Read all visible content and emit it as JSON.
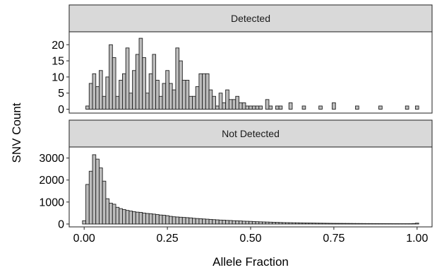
{
  "chart_data": {
    "type": "bar",
    "subtype": "faceted-histogram",
    "xlabel": "Allele Fraction",
    "ylabel": "SNV Count",
    "xlim": [
      -0.045,
      1.045
    ],
    "x_ticks": [
      0.0,
      0.25,
      0.5,
      0.75,
      1.0
    ],
    "x_tick_labels": [
      "0.00",
      "0.25",
      "0.50",
      "0.75",
      "1.00"
    ],
    "bin_width": 0.01,
    "bar_color": "#bdbdbd",
    "bar_edge_color": "#1f1f1f",
    "strip_color": "#d9d9d9",
    "grid": false,
    "panels": [
      {
        "title": "Detected",
        "ylim": [
          -1.2,
          24
        ],
        "y_ticks": [
          0,
          5,
          10,
          15,
          20
        ],
        "y_tick_labels": [
          "0",
          "5",
          "10",
          "15",
          "20"
        ],
        "bins": [
          {
            "x": 0.01,
            "y": 1
          },
          {
            "x": 0.02,
            "y": 8
          },
          {
            "x": 0.03,
            "y": 11
          },
          {
            "x": 0.04,
            "y": 7
          },
          {
            "x": 0.05,
            "y": 12
          },
          {
            "x": 0.06,
            "y": 4
          },
          {
            "x": 0.07,
            "y": 10
          },
          {
            "x": 0.08,
            "y": 20
          },
          {
            "x": 0.09,
            "y": 16
          },
          {
            "x": 0.1,
            "y": 4
          },
          {
            "x": 0.11,
            "y": 9
          },
          {
            "x": 0.12,
            "y": 11
          },
          {
            "x": 0.13,
            "y": 19
          },
          {
            "x": 0.14,
            "y": 5
          },
          {
            "x": 0.15,
            "y": 12
          },
          {
            "x": 0.16,
            "y": 17
          },
          {
            "x": 0.17,
            "y": 22
          },
          {
            "x": 0.18,
            "y": 16
          },
          {
            "x": 0.19,
            "y": 5
          },
          {
            "x": 0.2,
            "y": 11
          },
          {
            "x": 0.21,
            "y": 17
          },
          {
            "x": 0.22,
            "y": 9
          },
          {
            "x": 0.23,
            "y": 4
          },
          {
            "x": 0.24,
            "y": 8
          },
          {
            "x": 0.25,
            "y": 12
          },
          {
            "x": 0.26,
            "y": 8
          },
          {
            "x": 0.27,
            "y": 6
          },
          {
            "x": 0.28,
            "y": 19
          },
          {
            "x": 0.29,
            "y": 15
          },
          {
            "x": 0.3,
            "y": 9
          },
          {
            "x": 0.31,
            "y": 9
          },
          {
            "x": 0.32,
            "y": 4
          },
          {
            "x": 0.33,
            "y": 4
          },
          {
            "x": 0.34,
            "y": 7
          },
          {
            "x": 0.35,
            "y": 11
          },
          {
            "x": 0.36,
            "y": 11
          },
          {
            "x": 0.37,
            "y": 11
          },
          {
            "x": 0.38,
            "y": 6
          },
          {
            "x": 0.39,
            "y": 4
          },
          {
            "x": 0.4,
            "y": 1
          },
          {
            "x": 0.41,
            "y": 5
          },
          {
            "x": 0.42,
            "y": 2
          },
          {
            "x": 0.43,
            "y": 6
          },
          {
            "x": 0.44,
            "y": 3
          },
          {
            "x": 0.45,
            "y": 3
          },
          {
            "x": 0.46,
            "y": 4
          },
          {
            "x": 0.47,
            "y": 2
          },
          {
            "x": 0.48,
            "y": 2
          },
          {
            "x": 0.49,
            "y": 1
          },
          {
            "x": 0.5,
            "y": 1
          },
          {
            "x": 0.51,
            "y": 1
          },
          {
            "x": 0.52,
            "y": 1
          },
          {
            "x": 0.53,
            "y": 1
          },
          {
            "x": 0.55,
            "y": 3
          },
          {
            "x": 0.56,
            "y": 1
          },
          {
            "x": 0.58,
            "y": 1
          },
          {
            "x": 0.59,
            "y": 1
          },
          {
            "x": 0.62,
            "y": 2
          },
          {
            "x": 0.66,
            "y": 1
          },
          {
            "x": 0.71,
            "y": 1
          },
          {
            "x": 0.75,
            "y": 2
          },
          {
            "x": 0.82,
            "y": 1
          },
          {
            "x": 0.89,
            "y": 1
          },
          {
            "x": 0.97,
            "y": 1
          },
          {
            "x": 1.0,
            "y": 1
          }
        ]
      },
      {
        "title": "Not Detected",
        "ylim": [
          -130,
          3500
        ],
        "y_ticks": [
          0,
          1000,
          2000,
          3000
        ],
        "y_tick_labels": [
          "0",
          "1000",
          "2000",
          "3000"
        ],
        "bins": [
          {
            "x": 0.0,
            "y": 150
          },
          {
            "x": 0.01,
            "y": 1800
          },
          {
            "x": 0.02,
            "y": 2400
          },
          {
            "x": 0.03,
            "y": 3150
          },
          {
            "x": 0.04,
            "y": 2950
          },
          {
            "x": 0.05,
            "y": 2550
          },
          {
            "x": 0.06,
            "y": 1950
          },
          {
            "x": 0.07,
            "y": 1150
          },
          {
            "x": 0.08,
            "y": 950
          },
          {
            "x": 0.09,
            "y": 900
          },
          {
            "x": 0.1,
            "y": 760
          },
          {
            "x": 0.11,
            "y": 700
          },
          {
            "x": 0.12,
            "y": 660
          },
          {
            "x": 0.13,
            "y": 620
          },
          {
            "x": 0.14,
            "y": 590
          },
          {
            "x": 0.15,
            "y": 560
          },
          {
            "x": 0.16,
            "y": 540
          },
          {
            "x": 0.17,
            "y": 530
          },
          {
            "x": 0.18,
            "y": 500
          },
          {
            "x": 0.19,
            "y": 480
          },
          {
            "x": 0.2,
            "y": 470
          },
          {
            "x": 0.21,
            "y": 450
          },
          {
            "x": 0.22,
            "y": 430
          },
          {
            "x": 0.23,
            "y": 410
          },
          {
            "x": 0.24,
            "y": 400
          },
          {
            "x": 0.25,
            "y": 380
          },
          {
            "x": 0.26,
            "y": 350
          },
          {
            "x": 0.27,
            "y": 330
          },
          {
            "x": 0.28,
            "y": 320
          },
          {
            "x": 0.29,
            "y": 310
          },
          {
            "x": 0.3,
            "y": 300
          },
          {
            "x": 0.31,
            "y": 290
          },
          {
            "x": 0.32,
            "y": 280
          },
          {
            "x": 0.33,
            "y": 260
          },
          {
            "x": 0.34,
            "y": 250
          },
          {
            "x": 0.35,
            "y": 240
          },
          {
            "x": 0.36,
            "y": 230
          },
          {
            "x": 0.37,
            "y": 220
          },
          {
            "x": 0.38,
            "y": 210
          },
          {
            "x": 0.39,
            "y": 200
          },
          {
            "x": 0.4,
            "y": 190
          },
          {
            "x": 0.41,
            "y": 180
          },
          {
            "x": 0.42,
            "y": 175
          },
          {
            "x": 0.43,
            "y": 165
          },
          {
            "x": 0.44,
            "y": 160
          },
          {
            "x": 0.45,
            "y": 150
          },
          {
            "x": 0.46,
            "y": 145
          },
          {
            "x": 0.47,
            "y": 140
          },
          {
            "x": 0.48,
            "y": 130
          },
          {
            "x": 0.49,
            "y": 125
          },
          {
            "x": 0.5,
            "y": 120
          },
          {
            "x": 0.51,
            "y": 110
          },
          {
            "x": 0.52,
            "y": 105
          },
          {
            "x": 0.53,
            "y": 100
          },
          {
            "x": 0.54,
            "y": 95
          },
          {
            "x": 0.55,
            "y": 90
          },
          {
            "x": 0.56,
            "y": 85
          },
          {
            "x": 0.57,
            "y": 80
          },
          {
            "x": 0.58,
            "y": 75
          },
          {
            "x": 0.59,
            "y": 70
          },
          {
            "x": 0.6,
            "y": 65
          },
          {
            "x": 0.61,
            "y": 62
          },
          {
            "x": 0.62,
            "y": 60
          },
          {
            "x": 0.63,
            "y": 57
          },
          {
            "x": 0.64,
            "y": 55
          },
          {
            "x": 0.65,
            "y": 52
          },
          {
            "x": 0.66,
            "y": 50
          },
          {
            "x": 0.67,
            "y": 47
          },
          {
            "x": 0.68,
            "y": 45
          },
          {
            "x": 0.69,
            "y": 43
          },
          {
            "x": 0.7,
            "y": 40
          },
          {
            "x": 0.71,
            "y": 38
          },
          {
            "x": 0.72,
            "y": 36
          },
          {
            "x": 0.73,
            "y": 34
          },
          {
            "x": 0.74,
            "y": 32
          },
          {
            "x": 0.75,
            "y": 30
          },
          {
            "x": 0.76,
            "y": 29
          },
          {
            "x": 0.77,
            "y": 28
          },
          {
            "x": 0.78,
            "y": 27
          },
          {
            "x": 0.79,
            "y": 26
          },
          {
            "x": 0.8,
            "y": 25
          },
          {
            "x": 0.81,
            "y": 24
          },
          {
            "x": 0.82,
            "y": 23
          },
          {
            "x": 0.83,
            "y": 22
          },
          {
            "x": 0.84,
            "y": 21
          },
          {
            "x": 0.85,
            "y": 20
          },
          {
            "x": 0.86,
            "y": 20
          },
          {
            "x": 0.87,
            "y": 19
          },
          {
            "x": 0.88,
            "y": 19
          },
          {
            "x": 0.89,
            "y": 18
          },
          {
            "x": 0.9,
            "y": 18
          },
          {
            "x": 0.91,
            "y": 17
          },
          {
            "x": 0.92,
            "y": 17
          },
          {
            "x": 0.93,
            "y": 16
          },
          {
            "x": 0.94,
            "y": 16
          },
          {
            "x": 0.95,
            "y": 15
          },
          {
            "x": 0.96,
            "y": 15
          },
          {
            "x": 0.97,
            "y": 15
          },
          {
            "x": 0.98,
            "y": 16
          },
          {
            "x": 0.99,
            "y": 22
          },
          {
            "x": 1.0,
            "y": 40
          }
        ]
      }
    ]
  }
}
